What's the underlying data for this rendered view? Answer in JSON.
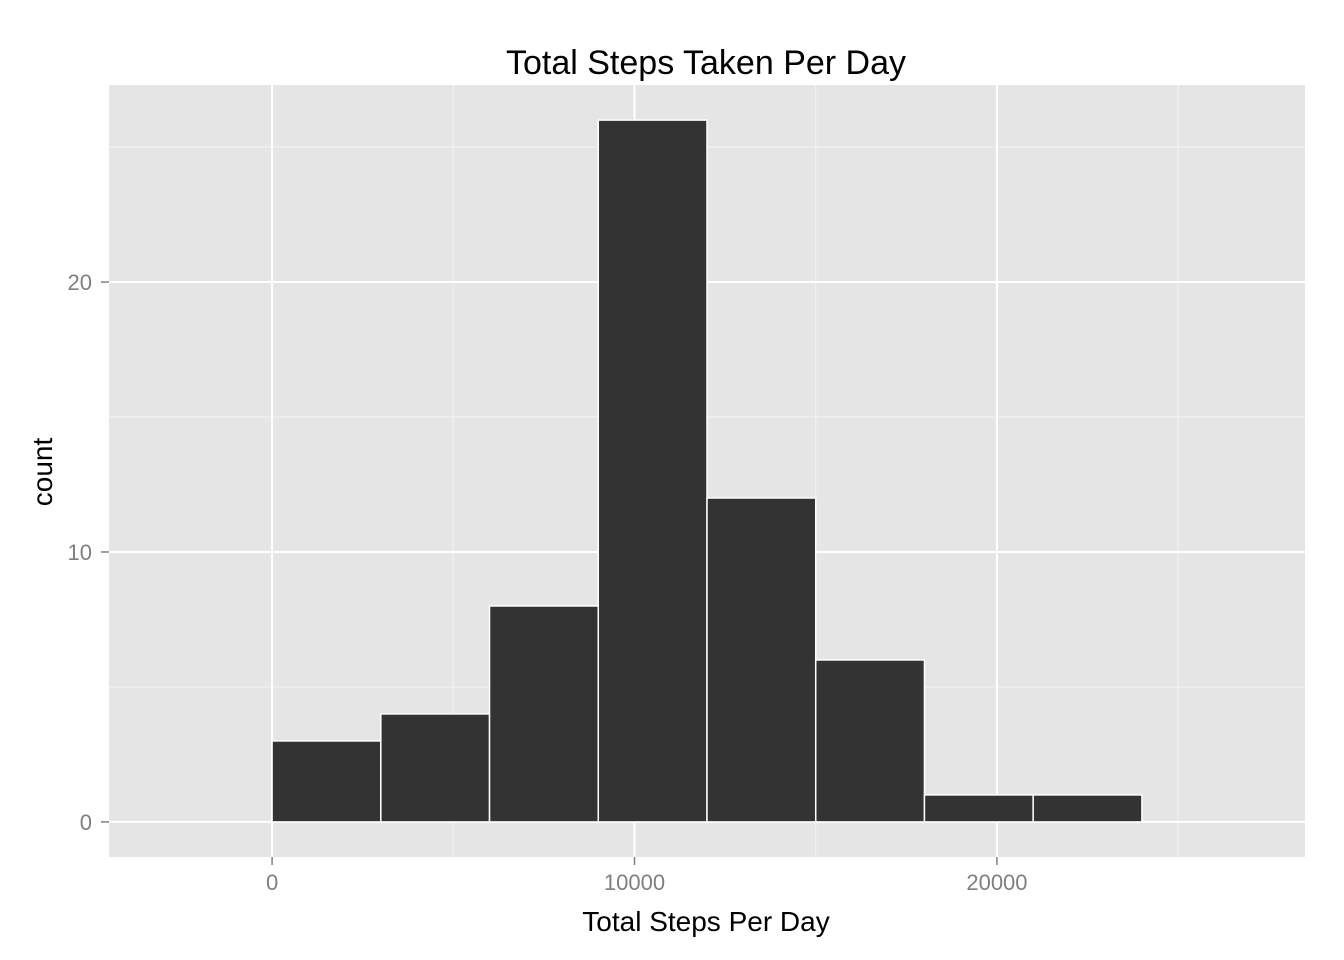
{
  "chart_data": {
    "type": "bar",
    "subtype": "histogram",
    "title": "Total Steps Taken Per Day",
    "xlabel": "Total Steps Per Day",
    "ylabel": "count",
    "xlim": [
      -4500,
      28500
    ],
    "ylim": [
      -1.3,
      27.3
    ],
    "x_ticks": [
      0,
      10000,
      20000
    ],
    "x_tick_labels": [
      "0",
      "10000",
      "20000"
    ],
    "y_ticks": [
      0,
      10,
      20
    ],
    "y_tick_labels": [
      "0",
      "10",
      "20"
    ],
    "bins": [
      {
        "start": 0,
        "end": 3000,
        "count": 3
      },
      {
        "start": 3000,
        "end": 6000,
        "count": 4
      },
      {
        "start": 6000,
        "end": 9000,
        "count": 8
      },
      {
        "start": 9000,
        "end": 12000,
        "count": 26
      },
      {
        "start": 12000,
        "end": 15000,
        "count": 12
      },
      {
        "start": 15000,
        "end": 18000,
        "count": 6
      },
      {
        "start": 18000,
        "end": 21000,
        "count": 1
      },
      {
        "start": 21000,
        "end": 24000,
        "count": 1
      }
    ],
    "grid": true,
    "colors": {
      "panel_background": "#e5e5e5",
      "grid_major": "#ffffff",
      "grid_minor": "#f2f2f2",
      "bar_fill": "#333333",
      "bar_outline": "#ffffff",
      "tick_label": "#7f7f7f",
      "tick_mark": "#7f7f7f"
    }
  }
}
